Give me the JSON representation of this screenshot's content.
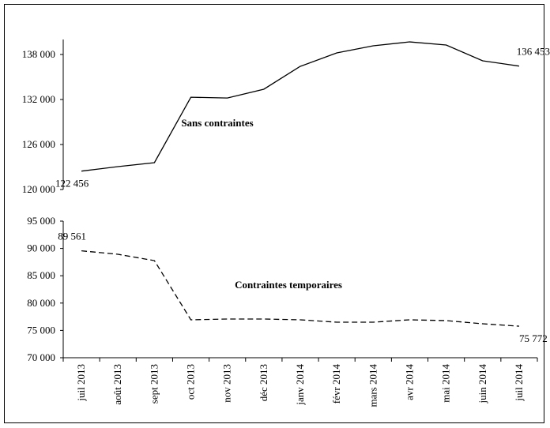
{
  "chart_data": [
    {
      "type": "line",
      "annotation": "Sans contraintes",
      "color": "#000000",
      "line_style": "solid",
      "values": [
        122456,
        123050,
        123580,
        132300,
        132200,
        133370,
        136420,
        138210,
        139160,
        139680,
        139260,
        137160,
        136453
      ],
      "value_labels": [
        "122 456",
        null,
        null,
        null,
        null,
        null,
        null,
        null,
        null,
        null,
        null,
        null,
        "136 453"
      ],
      "ylim": [
        120000,
        140000
      ],
      "yticks": [
        {
          "value": 120000,
          "label": "120 000"
        },
        {
          "value": 126000,
          "label": "126 000"
        },
        {
          "value": 132000,
          "label": "132 000"
        },
        {
          "value": 138000,
          "label": "138 000"
        }
      ]
    },
    {
      "type": "line",
      "annotation": "Contraintes temporaires",
      "color": "#000000",
      "line_style": "dashed",
      "categories": [
        "juil 2013",
        "août 2013",
        "sept 2013",
        "oct 2013",
        "nov 2013",
        "déc 2013",
        "janv 2014",
        "févr 2014",
        "mars 2014",
        "avr 2014",
        "mai 2014",
        "juin 2014",
        "juil 2014"
      ],
      "values": [
        89561,
        88930,
        87770,
        76940,
        77080,
        77080,
        76940,
        76500,
        76500,
        76940,
        76790,
        76210,
        75772
      ],
      "value_labels": [
        "89 561",
        null,
        null,
        null,
        null,
        null,
        null,
        null,
        null,
        null,
        null,
        null,
        "75 772"
      ],
      "ylim": [
        70000,
        95000
      ],
      "yticks": [
        {
          "value": 70000,
          "label": "70 000"
        },
        {
          "value": 75000,
          "label": "75 000"
        },
        {
          "value": 80000,
          "label": "80 000"
        },
        {
          "value": 85000,
          "label": "85 000"
        },
        {
          "value": 90000,
          "label": "90 000"
        },
        {
          "value": 95000,
          "label": "95 000"
        }
      ]
    }
  ]
}
